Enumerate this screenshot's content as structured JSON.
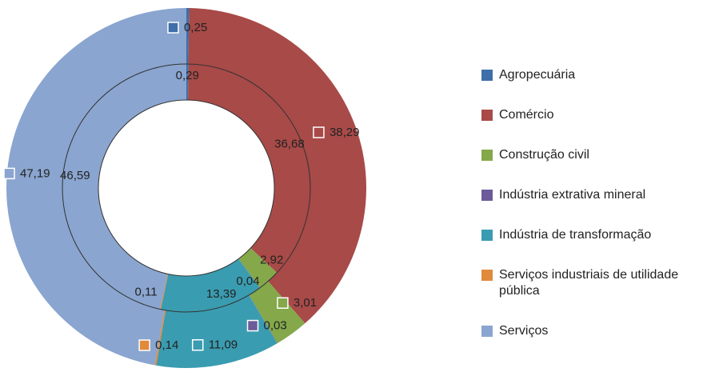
{
  "chart_data": {
    "type": "doughnut",
    "categories": [
      "Agropecuária",
      "Comércio",
      "Construção civil",
      "Indústria extrativa mineral",
      "Indústria de transformação",
      "Serviços industriais de utilidade pública",
      "Serviços"
    ],
    "colors": [
      "#3f6fa8",
      "#a84a48",
      "#84a84a",
      "#6c5a9a",
      "#3a9cb0",
      "#e08a3c",
      "#8aa5cf"
    ],
    "series": [
      {
        "values": [
          0.29,
          36.68,
          2.92,
          0.04,
          13.39,
          0.11,
          46.59
        ],
        "value_labels": [
          "0,29",
          "36,68",
          "2,92",
          "0,04",
          "13,39",
          "0,11",
          "46,59"
        ]
      },
      {
        "values": [
          0.25,
          38.29,
          3.01,
          0.03,
          11.09,
          0.14,
          47.19
        ],
        "value_labels": [
          "0,25",
          "38,29",
          "3,01",
          "0,03",
          "11,09",
          "0,14",
          "47,19"
        ]
      }
    ]
  }
}
